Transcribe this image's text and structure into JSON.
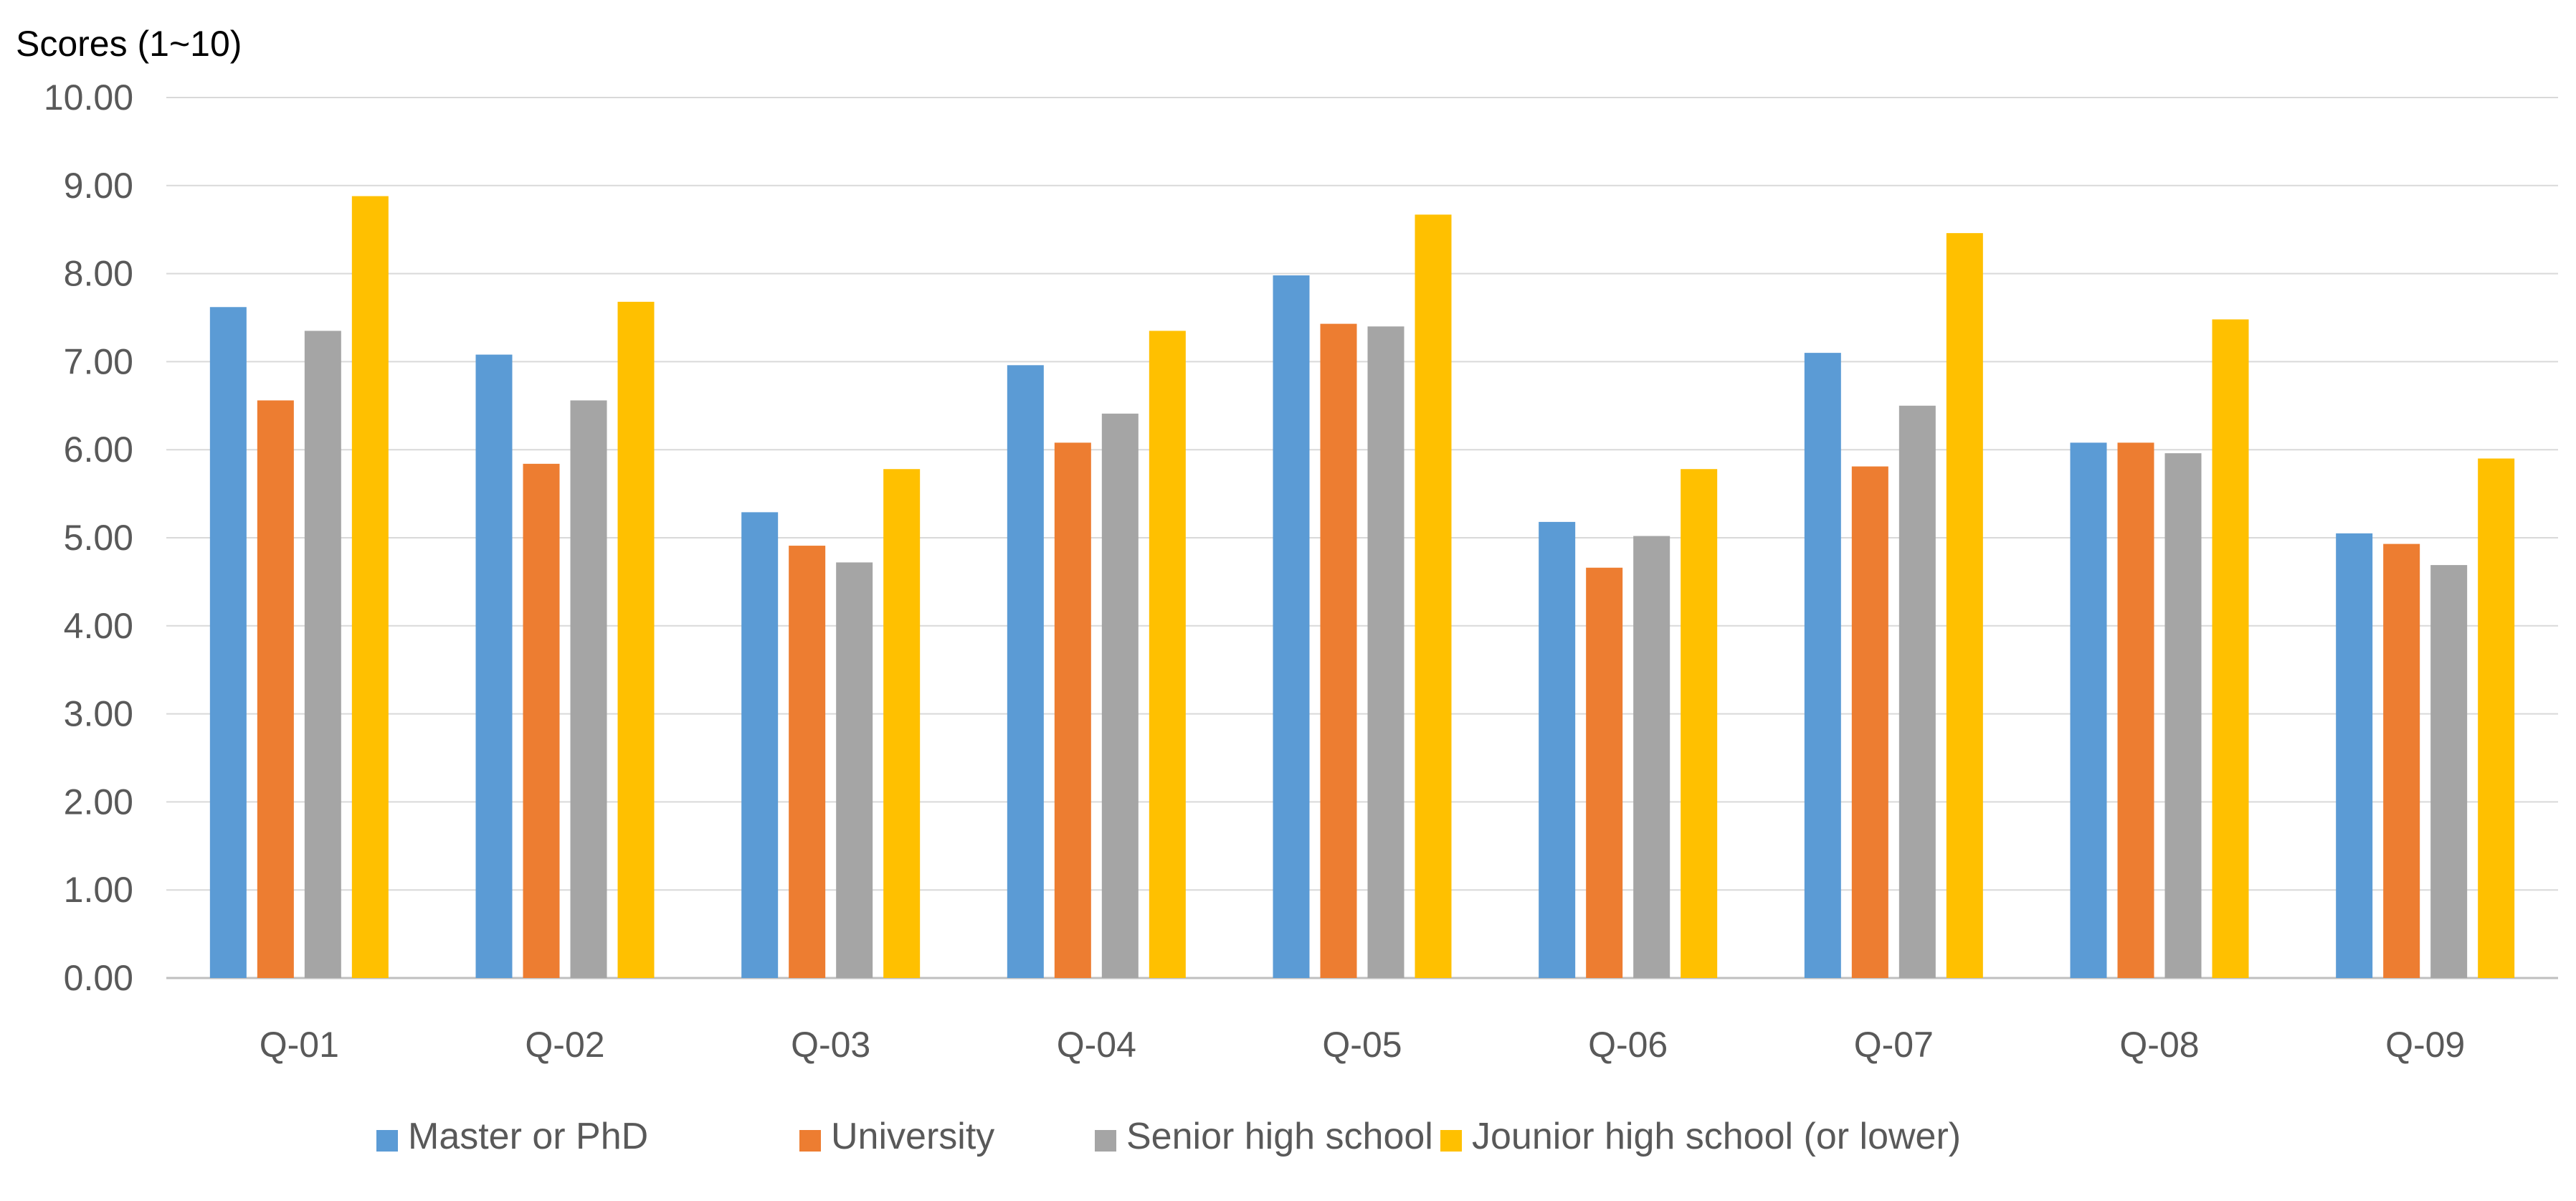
{
  "chart_data": {
    "type": "bar",
    "title": "",
    "xlabel": "",
    "ylabel": "Scores (1~10)",
    "ylim": [
      0,
      10
    ],
    "ytick_step": 1,
    "ytick_labels": [
      "0.00",
      "1.00",
      "2.00",
      "3.00",
      "4.00",
      "5.00",
      "6.00",
      "7.00",
      "8.00",
      "9.00",
      "10.00"
    ],
    "grid": true,
    "legend_position": "bottom",
    "categories": [
      "Q-01",
      "Q-02",
      "Q-03",
      "Q-04",
      "Q-05",
      "Q-06",
      "Q-07",
      "Q-08",
      "Q-09"
    ],
    "series": [
      {
        "name": "Master or PhD",
        "color": "#5B9BD5",
        "values": [
          7.62,
          7.08,
          5.29,
          6.96,
          7.98,
          5.18,
          7.1,
          6.08,
          5.05
        ]
      },
      {
        "name": "University",
        "color": "#ED7D31",
        "values": [
          6.56,
          5.84,
          4.91,
          6.08,
          7.43,
          4.66,
          5.81,
          6.08,
          4.93
        ]
      },
      {
        "name": "Senior high school",
        "color": "#A5A5A5",
        "values": [
          7.35,
          6.56,
          4.72,
          6.41,
          7.4,
          5.02,
          6.5,
          5.96,
          4.69
        ]
      },
      {
        "name": "Jounior high school (or lower)",
        "color": "#FFC000",
        "values": [
          8.88,
          7.68,
          5.78,
          7.35,
          8.67,
          5.78,
          8.46,
          7.48,
          5.9
        ]
      }
    ]
  },
  "colors": {
    "grid": "#D9D9D9",
    "axis": "#BFBFBF",
    "tick_text": "#595959"
  }
}
